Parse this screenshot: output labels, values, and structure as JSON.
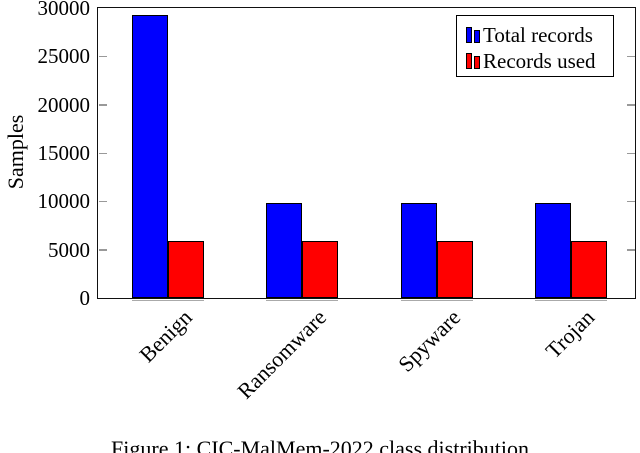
{
  "figure": {
    "caption": "Figure 1: CIC-MalMem-2022 class distribution"
  },
  "chart_data": {
    "type": "bar",
    "title": "",
    "categories": [
      "Benign",
      "Ransomware",
      "Spyware",
      "Trojan"
    ],
    "series": [
      {
        "name": "Total records",
        "color": "#0000ff",
        "values": [
          29300,
          9800,
          9800,
          9800
        ]
      },
      {
        "name": "Records used",
        "color": "#ff0000",
        "values": [
          5900,
          5900,
          5900,
          5900
        ]
      }
    ],
    "xlabel": "",
    "ylabel": "Samples",
    "ylim": [
      0,
      30000
    ],
    "yticks": [
      0,
      5000,
      10000,
      15000,
      20000,
      25000,
      30000
    ],
    "grid": false,
    "legend_position": "top-right",
    "bar_border_color": "#000000",
    "axis_color": "#111111"
  }
}
